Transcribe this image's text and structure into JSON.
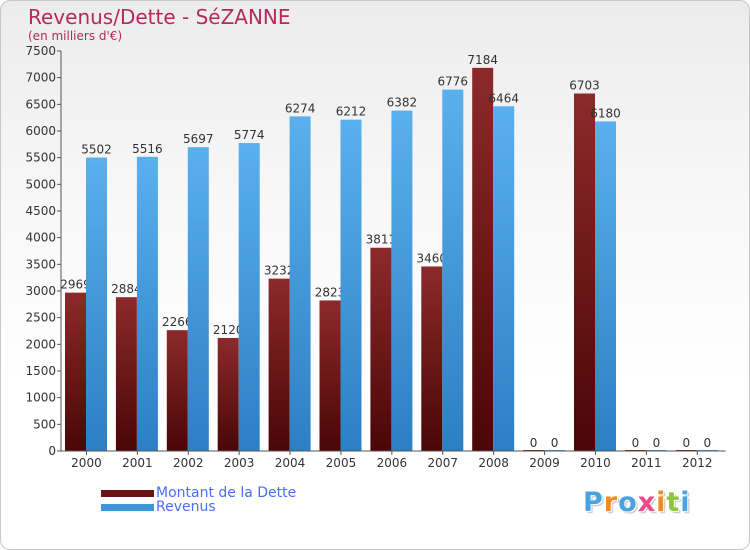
{
  "header": {
    "title": "Revenus/Dette - SéZANNE",
    "subtitle": "(en milliers d'€)"
  },
  "colors": {
    "dette": "#6b1414",
    "revenus": "#3d97db",
    "title": "#b5295d",
    "legend_text": "#4a6ef5"
  },
  "legend": [
    {
      "label": "Montant de la Dette",
      "color": "#6b1414"
    },
    {
      "label": "Revenus",
      "color": "#3d97db"
    }
  ],
  "logo": {
    "letters": [
      "P",
      "r",
      "o",
      "x",
      "i",
      "t",
      "i"
    ],
    "colors": [
      "#4aa2e0",
      "#f08c22",
      "#4aa2e0",
      "#e94b8a",
      "#f08c22",
      "#8cc63f",
      "#4aa2e0"
    ]
  },
  "chart_data": {
    "type": "bar",
    "categories": [
      "2000",
      "2001",
      "2002",
      "2003",
      "2004",
      "2005",
      "2006",
      "2007",
      "2008",
      "2009",
      "2010",
      "2011",
      "2012"
    ],
    "series": [
      {
        "name": "Montant de la Dette",
        "values": [
          2969,
          2884,
          2266,
          2120,
          3232,
          2823,
          3811,
          3460,
          7184,
          0,
          6703,
          0,
          0
        ]
      },
      {
        "name": "Revenus",
        "values": [
          5502,
          5516,
          5697,
          5774,
          6274,
          6212,
          6382,
          6776,
          6464,
          0,
          6180,
          0,
          0
        ]
      }
    ],
    "ylim": [
      0,
      7500
    ],
    "yticks": [
      0,
      500,
      1000,
      1500,
      2000,
      2500,
      3000,
      3500,
      4000,
      4500,
      5000,
      5500,
      6000,
      6500,
      7000,
      7500
    ],
    "grid": false,
    "legend_position": "bottom-left"
  }
}
